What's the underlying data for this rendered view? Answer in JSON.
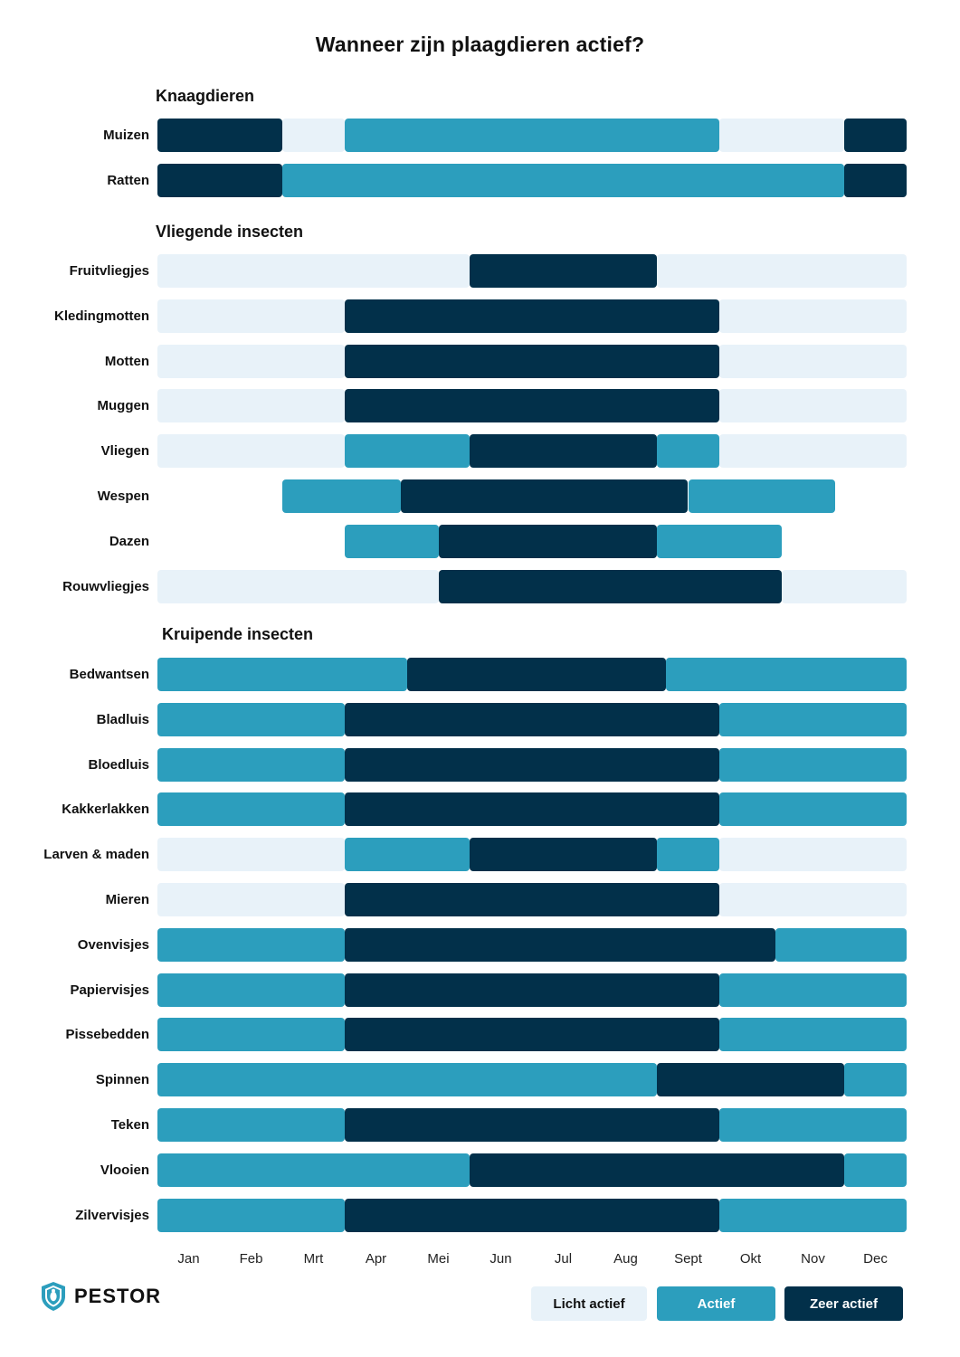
{
  "title": "Wanneer zijn plaagdieren actief?",
  "colors": {
    "licht": "#e8f2f9",
    "actief": "#2c9ebd",
    "zeer": "#02304a",
    "text": "#111111"
  },
  "logo": {
    "text": "PESTOR",
    "icon": "shield-bug-icon",
    "color": "#2c9ebd"
  },
  "legend": [
    {
      "key": "licht",
      "label": "Licht actief"
    },
    {
      "key": "actief",
      "label": "Actief"
    },
    {
      "key": "zeer",
      "label": "Zeer actief"
    }
  ],
  "chart_data": {
    "type": "gantt",
    "title": "Wanneer zijn plaagdieren actief?",
    "months": [
      "Jan",
      "Feb",
      "Mrt",
      "Apr",
      "Mei",
      "Jun",
      "Jul",
      "Aug",
      "Sept",
      "Okt",
      "Nov",
      "Dec"
    ],
    "x_unit": "month",
    "xlim": [
      0,
      12
    ],
    "levels": {
      "licht": "Licht actief",
      "actief": "Actief",
      "zeer": "Zeer actief"
    },
    "groups": [
      {
        "name": "Knaagdieren",
        "rows": [
          {
            "label": "Muizen",
            "segments": [
              {
                "start": 0,
                "end": 2,
                "level": "zeer"
              },
              {
                "start": 2,
                "end": 3,
                "level": "licht"
              },
              {
                "start": 3,
                "end": 9,
                "level": "actief"
              },
              {
                "start": 9,
                "end": 11,
                "level": "licht"
              },
              {
                "start": 11,
                "end": 12,
                "level": "zeer"
              }
            ]
          },
          {
            "label": "Ratten",
            "segments": [
              {
                "start": 0,
                "end": 2,
                "level": "zeer"
              },
              {
                "start": 2,
                "end": 11,
                "level": "actief"
              },
              {
                "start": 11,
                "end": 12,
                "level": "zeer"
              }
            ]
          }
        ]
      },
      {
        "name": "Vliegende insecten",
        "rows": [
          {
            "label": "Fruitvliegjes",
            "segments": [
              {
                "start": 0,
                "end": 5,
                "level": "licht"
              },
              {
                "start": 5,
                "end": 8,
                "level": "zeer"
              },
              {
                "start": 8,
                "end": 12,
                "level": "licht"
              }
            ]
          },
          {
            "label": "Kledingmotten",
            "segments": [
              {
                "start": 0,
                "end": 3,
                "level": "licht"
              },
              {
                "start": 3,
                "end": 9,
                "level": "zeer"
              },
              {
                "start": 9,
                "end": 12,
                "level": "licht"
              }
            ]
          },
          {
            "label": "Motten",
            "segments": [
              {
                "start": 0,
                "end": 3,
                "level": "licht"
              },
              {
                "start": 3,
                "end": 9,
                "level": "zeer"
              },
              {
                "start": 9,
                "end": 12,
                "level": "licht"
              }
            ]
          },
          {
            "label": "Muggen",
            "segments": [
              {
                "start": 0,
                "end": 3,
                "level": "licht"
              },
              {
                "start": 3,
                "end": 9,
                "level": "zeer"
              },
              {
                "start": 9,
                "end": 12,
                "level": "licht"
              }
            ]
          },
          {
            "label": "Vliegen",
            "segments": [
              {
                "start": 0,
                "end": 3,
                "level": "licht"
              },
              {
                "start": 3,
                "end": 5,
                "level": "actief"
              },
              {
                "start": 5,
                "end": 8,
                "level": "zeer"
              },
              {
                "start": 8,
                "end": 9,
                "level": "actief"
              },
              {
                "start": 9,
                "end": 12,
                "level": "licht"
              }
            ]
          },
          {
            "label": "Wespen",
            "segments": [
              {
                "start": 2,
                "end": 3.9,
                "level": "actief"
              },
              {
                "start": 3.9,
                "end": 8.5,
                "level": "zeer"
              },
              {
                "start": 8.5,
                "end": 10.85,
                "level": "actief"
              }
            ]
          },
          {
            "label": "Dazen",
            "segments": [
              {
                "start": 3,
                "end": 4.5,
                "level": "actief"
              },
              {
                "start": 4.5,
                "end": 8,
                "level": "zeer"
              },
              {
                "start": 8,
                "end": 10,
                "level": "actief"
              }
            ]
          },
          {
            "label": "Rouwvliegjes",
            "segments": [
              {
                "start": 0,
                "end": 4.5,
                "level": "licht"
              },
              {
                "start": 4.5,
                "end": 10,
                "level": "zeer"
              },
              {
                "start": 10,
                "end": 12,
                "level": "licht"
              }
            ]
          }
        ]
      },
      {
        "name": "Kruipende insecten",
        "rows": [
          {
            "label": "Bedwantsen",
            "segments": [
              {
                "start": 0,
                "end": 4,
                "level": "actief"
              },
              {
                "start": 4,
                "end": 8.15,
                "level": "zeer"
              },
              {
                "start": 8.15,
                "end": 12,
                "level": "actief"
              }
            ]
          },
          {
            "label": "Bladluis",
            "segments": [
              {
                "start": 0,
                "end": 3,
                "level": "actief"
              },
              {
                "start": 3,
                "end": 9,
                "level": "zeer"
              },
              {
                "start": 9,
                "end": 12,
                "level": "actief"
              }
            ]
          },
          {
            "label": "Bloedluis",
            "segments": [
              {
                "start": 0,
                "end": 3,
                "level": "actief"
              },
              {
                "start": 3,
                "end": 9,
                "level": "zeer"
              },
              {
                "start": 9,
                "end": 12,
                "level": "actief"
              }
            ]
          },
          {
            "label": "Kakkerlakken",
            "segments": [
              {
                "start": 0,
                "end": 3,
                "level": "actief"
              },
              {
                "start": 3,
                "end": 9,
                "level": "zeer"
              },
              {
                "start": 9,
                "end": 12,
                "level": "actief"
              }
            ]
          },
          {
            "label": "Larven & maden",
            "segments": [
              {
                "start": 0,
                "end": 3,
                "level": "licht"
              },
              {
                "start": 3,
                "end": 5,
                "level": "actief"
              },
              {
                "start": 5,
                "end": 8,
                "level": "zeer"
              },
              {
                "start": 8,
                "end": 9,
                "level": "actief"
              },
              {
                "start": 9,
                "end": 12,
                "level": "licht"
              }
            ]
          },
          {
            "label": "Mieren",
            "segments": [
              {
                "start": 0,
                "end": 3,
                "level": "licht"
              },
              {
                "start": 3,
                "end": 9,
                "level": "zeer"
              },
              {
                "start": 9,
                "end": 12,
                "level": "licht"
              }
            ]
          },
          {
            "label": "Ovenvisjes",
            "segments": [
              {
                "start": 0,
                "end": 3,
                "level": "actief"
              },
              {
                "start": 3,
                "end": 9.9,
                "level": "zeer"
              },
              {
                "start": 9.9,
                "end": 12,
                "level": "actief"
              }
            ]
          },
          {
            "label": "Papiervisjes",
            "segments": [
              {
                "start": 0,
                "end": 3,
                "level": "actief"
              },
              {
                "start": 3,
                "end": 9,
                "level": "zeer"
              },
              {
                "start": 9,
                "end": 12,
                "level": "actief"
              }
            ]
          },
          {
            "label": "Pissebedden",
            "segments": [
              {
                "start": 0,
                "end": 3,
                "level": "actief"
              },
              {
                "start": 3,
                "end": 9,
                "level": "zeer"
              },
              {
                "start": 9,
                "end": 12,
                "level": "actief"
              }
            ]
          },
          {
            "label": "Spinnen",
            "segments": [
              {
                "start": 0,
                "end": 8,
                "level": "actief"
              },
              {
                "start": 8,
                "end": 11,
                "level": "zeer"
              },
              {
                "start": 11,
                "end": 12,
                "level": "actief"
              }
            ]
          },
          {
            "label": "Teken",
            "segments": [
              {
                "start": 0,
                "end": 3,
                "level": "actief"
              },
              {
                "start": 3,
                "end": 9,
                "level": "zeer"
              },
              {
                "start": 9,
                "end": 12,
                "level": "actief"
              }
            ]
          },
          {
            "label": "Vlooien",
            "segments": [
              {
                "start": 0,
                "end": 5,
                "level": "actief"
              },
              {
                "start": 5,
                "end": 11,
                "level": "zeer"
              },
              {
                "start": 11,
                "end": 12,
                "level": "actief"
              }
            ]
          },
          {
            "label": "Zilvervisjes",
            "segments": [
              {
                "start": 0,
                "end": 3,
                "level": "actief"
              },
              {
                "start": 3,
                "end": 9,
                "level": "zeer"
              },
              {
                "start": 9,
                "end": 12,
                "level": "actief"
              }
            ]
          }
        ]
      }
    ]
  }
}
